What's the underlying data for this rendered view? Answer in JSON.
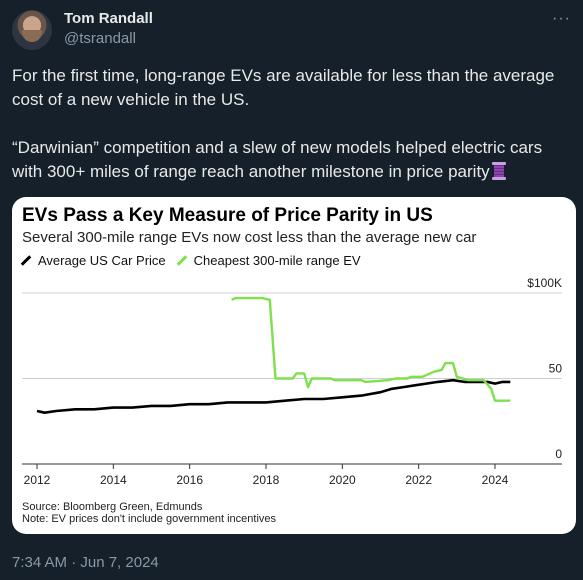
{
  "author": {
    "name": "Tom Randall",
    "handle": "@tsrandall",
    "avatar_icon": "profile-photo"
  },
  "more_icon": "more-options-icon",
  "tweet": {
    "paragraph1": "For the first time, long-range EVs are available for less than the average cost of a new vehicle in the US.",
    "paragraph2": "“Darwinian” competition and a slew of new models helped electric cars with 300+ miles of range reach another milestone in price parity",
    "emoji": "thread-spool-emoji"
  },
  "timestamp": "7:34 AM · Jun 7, 2024",
  "chart_data": {
    "type": "line",
    "title": "EVs Pass a Key Measure of Price Parity in US",
    "subtitle": "Several 300-mile range EVs now cost less than the average new car",
    "legend": [
      "Average US Car Price",
      "Cheapest 300-mile range EV"
    ],
    "legend_position": "top-left",
    "y_unit_label": "$100K",
    "y_ticks": [
      {
        "value": 100,
        "label": "$100K"
      },
      {
        "value": 50,
        "label": "50"
      },
      {
        "value": 0,
        "label": "0"
      }
    ],
    "x_ticks": [
      "2012",
      "2014",
      "2016",
      "2018",
      "2020",
      "2022",
      "2024"
    ],
    "xlim": [
      2011.8,
      2025.2
    ],
    "ylim": [
      0,
      100
    ],
    "gridlines": true,
    "colors": {
      "avg": "#000000",
      "ev": "#7ee04a"
    },
    "series": [
      {
        "name": "Average US Car Price",
        "x": [
          2012.0,
          2012.2,
          2012.5,
          2013.0,
          2013.5,
          2014.0,
          2014.5,
          2015.0,
          2015.5,
          2016.0,
          2016.5,
          2017.0,
          2017.5,
          2018.0,
          2018.5,
          2019.0,
          2019.5,
          2020.0,
          2020.5,
          2021.0,
          2021.3,
          2021.6,
          2021.9,
          2022.2,
          2022.5,
          2022.9,
          2023.2,
          2023.5,
          2023.8,
          2024.0,
          2024.2,
          2024.4
        ],
        "y": [
          31,
          30,
          31,
          32,
          32,
          33,
          33,
          34,
          34,
          35,
          35,
          36,
          36,
          36,
          37,
          38,
          38,
          39,
          40,
          42,
          44,
          45,
          46,
          47,
          48,
          49,
          48,
          48,
          48,
          47,
          48,
          48
        ]
      },
      {
        "name": "Cheapest 300-mile range EV",
        "x": [
          2017.1,
          2017.2,
          2017.9,
          2018.1,
          2018.25,
          2018.7,
          2018.8,
          2019.0,
          2019.1,
          2019.2,
          2019.4,
          2019.7,
          2019.8,
          2020.5,
          2020.6,
          2021.2,
          2021.4,
          2021.7,
          2021.8,
          2022.1,
          2022.4,
          2022.6,
          2022.7,
          2022.9,
          2023.0,
          2023.3,
          2023.7,
          2023.9,
          2024.0,
          2024.4
        ],
        "y": [
          96,
          97,
          97,
          96,
          50,
          50,
          53,
          53,
          45,
          50,
          50,
          50,
          49,
          49,
          48,
          49,
          50,
          50,
          51,
          51,
          54,
          55,
          59,
          59,
          51,
          49,
          49,
          44,
          37,
          37
        ]
      }
    ]
  },
  "source": {
    "line1": "Source: Bloomberg Green, Edmunds",
    "line2": "Note: EV prices don't include government incentives"
  }
}
